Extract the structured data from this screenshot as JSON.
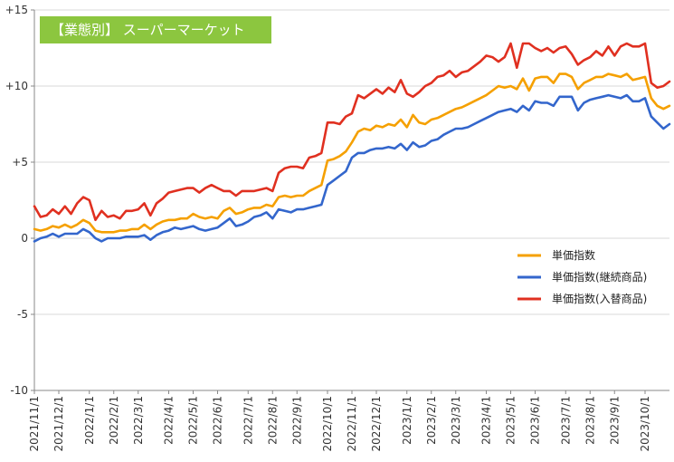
{
  "chart_data": {
    "type": "line",
    "title": "【業態別】 スーパーマーケット",
    "xlabel": "",
    "ylabel": "",
    "ylim": [
      -10,
      15
    ],
    "y_ticks": [
      15,
      10,
      5,
      0,
      -5,
      -10
    ],
    "y_tick_labels": [
      "+15",
      "+10",
      "+5",
      "0",
      "-5",
      "-10"
    ],
    "x_tick_labels": [
      "2021/11/1",
      "2021/12/1",
      "2022/1/1",
      "2022/2/1",
      "2022/3/1",
      "2022/4/1",
      "2022/5/1",
      "2022/6/1",
      "2022/7/1",
      "2022/8/1",
      "2022/9/1",
      "2022/10/1",
      "2022/11/1",
      "2022/12/1",
      "2023/1/1",
      "2023/2/1",
      "2023/3/1",
      "2023/4/1",
      "2023/5/1",
      "2023/6/1",
      "2023/7/1",
      "2023/8/1",
      "2023/9/1",
      "2023/10/1"
    ],
    "x_tick_weeks": [
      0,
      4,
      9,
      13,
      17,
      22,
      26,
      30,
      35,
      39,
      43,
      48,
      52,
      56,
      61,
      65,
      69,
      74,
      78,
      82,
      87,
      91,
      95,
      100
    ],
    "grid": "horizontal",
    "legend_position": "bottom-right",
    "series": [
      {
        "name": "単価指数",
        "color": "#f5a000",
        "values": [
          0.6,
          0.5,
          0.6,
          0.8,
          0.7,
          0.9,
          0.7,
          0.9,
          1.2,
          1.0,
          0.5,
          0.4,
          0.4,
          0.4,
          0.5,
          0.5,
          0.6,
          0.6,
          0.9,
          0.6,
          0.9,
          1.1,
          1.2,
          1.2,
          1.3,
          1.3,
          1.6,
          1.4,
          1.3,
          1.4,
          1.3,
          1.8,
          2.0,
          1.6,
          1.7,
          1.9,
          2.0,
          2.0,
          2.2,
          2.1,
          2.7,
          2.8,
          2.7,
          2.8,
          2.8,
          3.1,
          3.3,
          3.5,
          5.1,
          5.2,
          5.4,
          5.7,
          6.3,
          7.0,
          7.2,
          7.1,
          7.4,
          7.3,
          7.5,
          7.4,
          7.8,
          7.3,
          8.1,
          7.6,
          7.5,
          7.8,
          7.9,
          8.1,
          8.3,
          8.5,
          8.6,
          8.8,
          9.0,
          9.2,
          9.4,
          9.7,
          10.0,
          9.9,
          10.0,
          9.8,
          10.5,
          9.7,
          10.5,
          10.6,
          10.6,
          10.2,
          10.8,
          10.8,
          10.6,
          9.8,
          10.2,
          10.4,
          10.6,
          10.6,
          10.8,
          10.7,
          10.6,
          10.8,
          10.4,
          10.5,
          10.6,
          9.2,
          8.7,
          8.5,
          8.7
        ]
      },
      {
        "name": "単価指数(継続商品)",
        "color": "#3366cc",
        "values": [
          -0.2,
          0.0,
          0.1,
          0.3,
          0.1,
          0.3,
          0.3,
          0.3,
          0.6,
          0.4,
          0.0,
          -0.2,
          0.0,
          0.0,
          0.0,
          0.1,
          0.1,
          0.1,
          0.2,
          -0.1,
          0.2,
          0.4,
          0.5,
          0.7,
          0.6,
          0.7,
          0.8,
          0.6,
          0.5,
          0.6,
          0.7,
          1.0,
          1.3,
          0.8,
          0.9,
          1.1,
          1.4,
          1.5,
          1.7,
          1.3,
          1.9,
          1.8,
          1.7,
          1.9,
          1.9,
          2.0,
          2.1,
          2.2,
          3.5,
          3.8,
          4.1,
          4.4,
          5.3,
          5.6,
          5.6,
          5.8,
          5.9,
          5.9,
          6.0,
          5.9,
          6.2,
          5.8,
          6.3,
          6.0,
          6.1,
          6.4,
          6.5,
          6.8,
          7.0,
          7.2,
          7.2,
          7.3,
          7.5,
          7.7,
          7.9,
          8.1,
          8.3,
          8.4,
          8.5,
          8.3,
          8.7,
          8.4,
          9.0,
          8.9,
          8.9,
          8.7,
          9.3,
          9.3,
          9.3,
          8.4,
          8.9,
          9.1,
          9.2,
          9.3,
          9.4,
          9.3,
          9.2,
          9.4,
          9.0,
          9.0,
          9.2,
          8.0,
          7.6,
          7.2,
          7.5
        ]
      },
      {
        "name": "単価指数(入替商品)",
        "color": "#e03020",
        "values": [
          2.1,
          1.4,
          1.5,
          1.9,
          1.6,
          2.1,
          1.6,
          2.3,
          2.7,
          2.5,
          1.2,
          1.8,
          1.4,
          1.5,
          1.3,
          1.8,
          1.8,
          1.9,
          2.3,
          1.5,
          2.3,
          2.6,
          3.0,
          3.1,
          3.2,
          3.3,
          3.3,
          3.0,
          3.3,
          3.5,
          3.3,
          3.1,
          3.1,
          2.8,
          3.1,
          3.1,
          3.1,
          3.2,
          3.3,
          3.1,
          4.3,
          4.6,
          4.7,
          4.7,
          4.6,
          5.3,
          5.4,
          5.6,
          7.6,
          7.6,
          7.5,
          8.0,
          8.2,
          9.4,
          9.2,
          9.5,
          9.8,
          9.5,
          9.9,
          9.6,
          10.4,
          9.5,
          9.3,
          9.6,
          10.0,
          10.2,
          10.6,
          10.7,
          11.0,
          10.6,
          10.9,
          11.0,
          11.3,
          11.6,
          12.0,
          11.9,
          11.6,
          11.9,
          12.8,
          11.2,
          12.8,
          12.8,
          12.5,
          12.3,
          12.5,
          12.2,
          12.5,
          12.6,
          12.1,
          11.4,
          11.7,
          11.9,
          12.3,
          12.0,
          12.6,
          12.0,
          12.6,
          12.8,
          12.6,
          12.6,
          12.8,
          10.2,
          9.9,
          10.0,
          10.3
        ]
      }
    ]
  }
}
